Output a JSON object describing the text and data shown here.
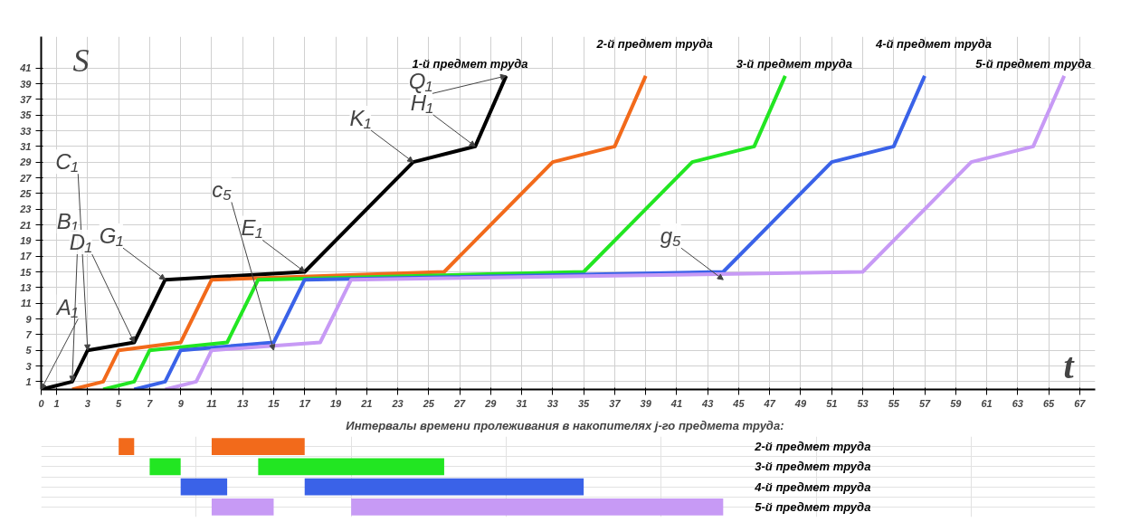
{
  "chart_data": [
    {
      "type": "line",
      "xlabel": "t",
      "ylabel": "S",
      "xlim": [
        0,
        68
      ],
      "ylim": [
        0,
        45
      ],
      "xticks": [
        0,
        1,
        3,
        5,
        7,
        9,
        11,
        13,
        15,
        17,
        19,
        21,
        23,
        25,
        27,
        29,
        31,
        33,
        35,
        37,
        39,
        41,
        43,
        45,
        47,
        49,
        51,
        53,
        55,
        57,
        59,
        61,
        63,
        65,
        67
      ],
      "yticks": [
        1,
        3,
        5,
        7,
        9,
        11,
        13,
        15,
        17,
        19,
        21,
        23,
        25,
        27,
        29,
        31,
        33,
        35,
        37,
        39,
        41
      ],
      "grid": true,
      "marker": "none",
      "line_style": "solid",
      "series": [
        {
          "name": "1-й предмет труда",
          "color": "#000000",
          "x": [
            0,
            2,
            3,
            6,
            8,
            17,
            24,
            28,
            30
          ],
          "values": [
            0,
            1,
            5,
            6,
            14,
            15,
            29,
            31,
            40
          ]
        },
        {
          "name": "2-й предмет труда",
          "color": "#f26a1b",
          "x": [
            2,
            4,
            5,
            9,
            11,
            26,
            33,
            37,
            39
          ],
          "values": [
            0,
            1,
            5,
            6,
            14,
            15,
            29,
            31,
            40
          ]
        },
        {
          "name": "3-й предмет труда",
          "color": "#22e622",
          "x": [
            4,
            6,
            7,
            12,
            14,
            35,
            42,
            46,
            48
          ],
          "values": [
            0,
            1,
            5,
            6,
            14,
            15,
            29,
            31,
            40
          ]
        },
        {
          "name": "4-й предмет труда",
          "color": "#3a62e8",
          "x": [
            6,
            8,
            9,
            15,
            17,
            44,
            51,
            55,
            57
          ],
          "values": [
            0,
            1,
            5,
            6,
            14,
            15,
            29,
            31,
            40
          ]
        },
        {
          "name": "5-й предмет труда",
          "color": "#c79af5",
          "x": [
            8,
            10,
            11,
            18,
            20,
            53,
            60,
            64,
            66
          ],
          "values": [
            0,
            1,
            5,
            6,
            14,
            15,
            29,
            31,
            40
          ]
        }
      ],
      "annotations": [
        {
          "text": "A₁",
          "x": 0,
          "y": 0
        },
        {
          "text": "B₁",
          "x": 2,
          "y": 1
        },
        {
          "text": "C₁",
          "x": 3,
          "y": 5
        },
        {
          "text": "D₁",
          "x": 6,
          "y": 6
        },
        {
          "text": "G₁",
          "x": 8,
          "y": 14
        },
        {
          "text": "E₁",
          "x": 17,
          "y": 15
        },
        {
          "text": "K₁",
          "x": 24,
          "y": 29
        },
        {
          "text": "H₁",
          "x": 28,
          "y": 31
        },
        {
          "text": "Q₁",
          "x": 30,
          "y": 40
        },
        {
          "text": "c₅",
          "x": 15,
          "y": 5
        },
        {
          "text": "g₅",
          "x": 44,
          "y": 14
        }
      ]
    },
    {
      "type": "bar",
      "orientation": "horizontal",
      "title": "Интервалы  времени пролеживания в накопителях  j-го предмета труда:",
      "categories": [
        "2-й предмет труда",
        "3-й предмет труда",
        "4-й предмет труда",
        "5-й предмет труда"
      ],
      "xlim": [
        0,
        68
      ],
      "tick_labels": "y",
      "grid": true,
      "series": [
        {
          "colors": [
            "#f26a1b",
            "#22e622",
            "#3a62e8",
            "#c79af5"
          ],
          "base": [
            5,
            7,
            9,
            11
          ],
          "values": [
            1,
            2,
            3,
            4
          ]
        },
        {
          "colors": [
            "#f26a1b",
            "#22e622",
            "#3a62e8",
            "#c79af5"
          ],
          "base": [
            11,
            14,
            17,
            20
          ],
          "values": [
            6,
            12,
            18,
            24
          ]
        }
      ]
    }
  ]
}
